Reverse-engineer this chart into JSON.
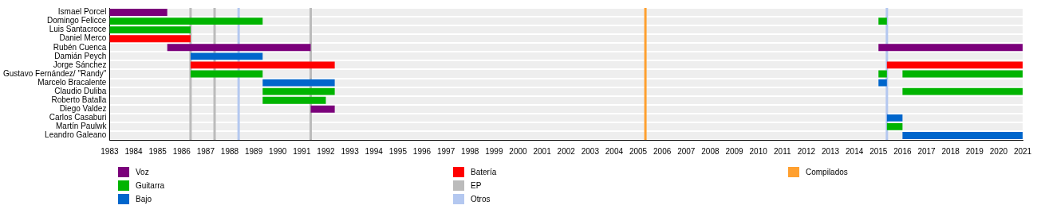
{
  "chart_data": {
    "type": "bar",
    "orientation": "horizontal",
    "legend": "bottom",
    "grid": "y",
    "categories": [
      "Ismael Porcel",
      "Domingo Felicce",
      "Luis Santacroce",
      "Daniel Merco",
      "Rubén Cuenca",
      "Damián Peych",
      "Jorge Sánchez",
      "Gustavo Fernández/ \"Randy\"",
      "Marcelo Bracalente",
      "Claudio Duliba",
      "Roberto Batalla",
      "Diego Valdez",
      "Carlos Casaburi",
      "Martín Paulwk",
      "Leandro Galeano"
    ],
    "xlim": [
      1983,
      2021
    ],
    "xticks": [
      1983,
      1984,
      1985,
      1986,
      1987,
      1988,
      1989,
      1990,
      1991,
      1992,
      1993,
      1994,
      1995,
      1996,
      1997,
      1998,
      1999,
      2000,
      2001,
      2002,
      2003,
      2004,
      2005,
      2006,
      2007,
      2008,
      2009,
      2010,
      2011,
      2012,
      2013,
      2014,
      2015,
      2016,
      2017,
      2018,
      2019,
      2020,
      2021
    ],
    "series": [
      {
        "name": "Voz",
        "color": "#7b007b",
        "base": [
          1983,
          null,
          null,
          null,
          1985.4,
          null,
          null,
          null,
          null,
          null,
          null,
          1991.37,
          null,
          null,
          null
        ],
        "values": [
          2.4,
          null,
          null,
          null,
          5.97,
          null,
          null,
          null,
          null,
          null,
          null,
          1.0,
          null,
          null,
          null
        ]
      },
      {
        "color": "#7b007b",
        "base": [
          null,
          null,
          null,
          null,
          2015,
          null,
          null,
          null,
          null,
          null,
          null,
          null,
          null,
          null,
          null
        ],
        "values": [
          null,
          null,
          null,
          null,
          6,
          null,
          null,
          null,
          null,
          null,
          null,
          null,
          null,
          null,
          null
        ]
      },
      {
        "name": "Guitarra",
        "color": "#00b400",
        "base": [
          null,
          1983,
          1983,
          null,
          null,
          null,
          null,
          1986.37,
          null,
          1989.37,
          1989.37,
          null,
          null,
          null,
          null
        ],
        "values": [
          null,
          6.37,
          3.37,
          null,
          null,
          null,
          null,
          3.0,
          null,
          3.0,
          2.63,
          null,
          null,
          null,
          null
        ]
      },
      {
        "color": "#00b400",
        "base": [
          null,
          2015,
          null,
          null,
          null,
          null,
          null,
          2015,
          null,
          null,
          null,
          null,
          null,
          2015.35,
          null
        ],
        "values": [
          null,
          0.35,
          null,
          null,
          null,
          null,
          null,
          0.35,
          null,
          null,
          null,
          null,
          null,
          0.65,
          null
        ]
      },
      {
        "color": "#00b400",
        "base": [
          null,
          null,
          null,
          null,
          null,
          null,
          null,
          2016,
          null,
          2016,
          null,
          null,
          null,
          null,
          null
        ],
        "values": [
          null,
          null,
          null,
          null,
          null,
          null,
          null,
          5,
          null,
          5,
          null,
          null,
          null,
          null,
          null
        ]
      },
      {
        "name": "Bajo",
        "color": "#0066cc",
        "base": [
          null,
          null,
          null,
          null,
          null,
          1986.37,
          null,
          null,
          1989.37,
          null,
          null,
          null,
          null,
          null,
          null
        ],
        "values": [
          null,
          null,
          null,
          null,
          null,
          3.0,
          null,
          null,
          3.0,
          null,
          null,
          null,
          null,
          null,
          null
        ]
      },
      {
        "color": "#0066cc",
        "base": [
          null,
          null,
          null,
          null,
          null,
          null,
          null,
          null,
          2015,
          null,
          null,
          null,
          2015.35,
          null,
          2016
        ],
        "values": [
          null,
          null,
          null,
          null,
          null,
          null,
          null,
          null,
          0.35,
          null,
          null,
          null,
          0.65,
          null,
          5
        ]
      },
      {
        "name": "Batería",
        "color": "#ff0000",
        "base": [
          null,
          null,
          null,
          1983,
          null,
          null,
          1986.37,
          null,
          null,
          null,
          null,
          null,
          null,
          null,
          null
        ],
        "values": [
          null,
          null,
          null,
          3.37,
          null,
          null,
          6.0,
          null,
          null,
          null,
          null,
          null,
          null,
          null,
          null
        ]
      },
      {
        "color": "#ff0000",
        "base": [
          null,
          null,
          null,
          null,
          null,
          null,
          2015.35,
          null,
          null,
          null,
          null,
          null,
          null,
          null,
          null
        ],
        "values": [
          null,
          null,
          null,
          null,
          null,
          null,
          5.65,
          null,
          null,
          null,
          null,
          null,
          null,
          null,
          null
        ]
      }
    ],
    "ref_lines": [
      {
        "axis": "x",
        "value": 1986.37,
        "label": "EP",
        "color": "#bbbbbb"
      },
      {
        "axis": "x",
        "value": 1987.37,
        "color": "#bbbbbb"
      },
      {
        "axis": "x",
        "value": 1991.37,
        "color": "#bbbbbb"
      },
      {
        "axis": "x",
        "value": 1988.37,
        "label": "Otros",
        "color": "#b4c8f0"
      },
      {
        "axis": "x",
        "value": 2015.35,
        "color": "#b4c8f0"
      },
      {
        "axis": "x",
        "value": 2005.3,
        "label": "Compilados",
        "color": "#ffa030"
      }
    ]
  }
}
